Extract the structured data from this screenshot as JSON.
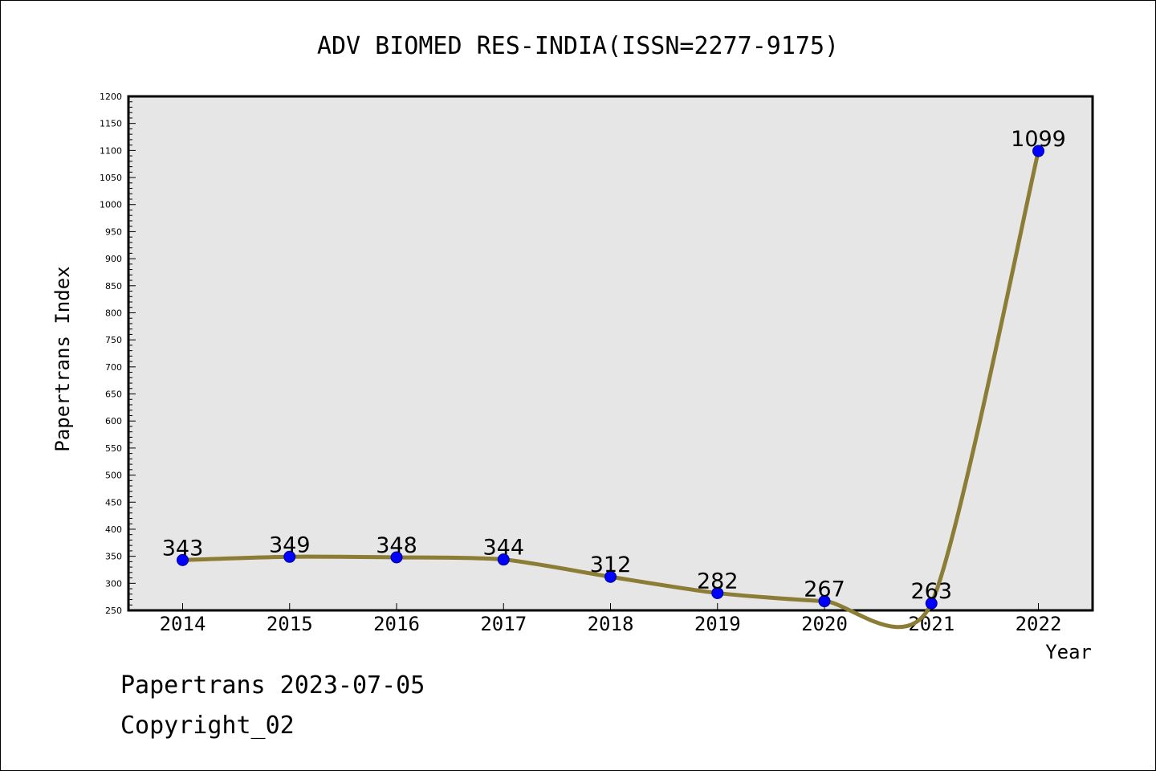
{
  "chart_data": {
    "type": "line",
    "title": "ADV BIOMED RES-INDIA(ISSN=2277-9175)",
    "xlabel": "Year",
    "ylabel": "Papertrans Index",
    "categories": [
      "2014",
      "2015",
      "2016",
      "2017",
      "2018",
      "2019",
      "2020",
      "2021",
      "2022"
    ],
    "series": [
      {
        "values": [
          343,
          349,
          348,
          344,
          312,
          282,
          267,
          263,
          1099
        ]
      }
    ],
    "data_labels": [
      "343",
      "349",
      "348",
      "344",
      "312",
      "282",
      "267",
      "263",
      "1099"
    ],
    "ylim": [
      250,
      1200
    ],
    "yticks": [
      250,
      300,
      350,
      400,
      450,
      500,
      550,
      600,
      650,
      700,
      750,
      800,
      850,
      900,
      950,
      1000,
      1050,
      1100,
      1150,
      1200
    ],
    "grid": false,
    "line_color": "#8B7D35",
    "marker_color": "#0000FF",
    "plot_background": "#E6E6E6"
  },
  "footer": {
    "line1": "Papertrans 2023-07-05",
    "line2": "Copyright_02"
  }
}
